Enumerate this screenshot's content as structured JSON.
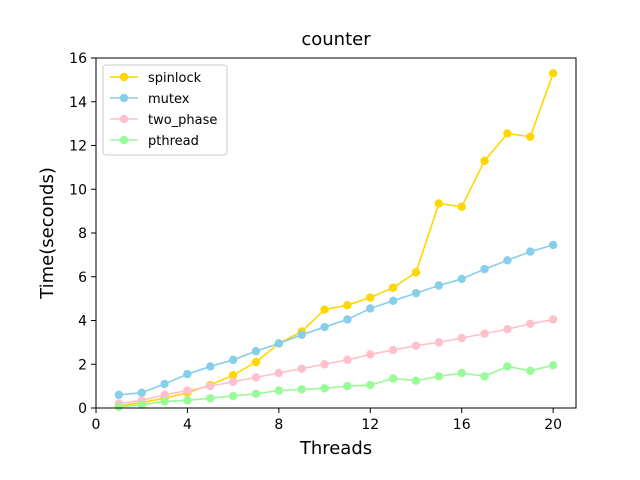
{
  "chart_data": {
    "type": "line",
    "title": "counter",
    "xlabel": "Threads",
    "ylabel": "Time(seconds)",
    "xlim": [
      0,
      21
    ],
    "ylim": [
      0,
      16
    ],
    "xticks": [
      0,
      4,
      8,
      12,
      16,
      20
    ],
    "yticks": [
      0,
      2,
      4,
      6,
      8,
      10,
      12,
      14,
      16
    ],
    "grid": false,
    "legend_position": "top-left",
    "x": [
      1,
      2,
      3,
      4,
      5,
      6,
      7,
      8,
      9,
      10,
      11,
      12,
      13,
      14,
      15,
      16,
      17,
      18,
      19,
      20
    ],
    "series": [
      {
        "name": "spinlock",
        "color": "#ffd700",
        "values": [
          0.1,
          0.25,
          0.45,
          0.7,
          1.05,
          1.5,
          2.1,
          2.95,
          3.5,
          4.5,
          4.7,
          5.05,
          5.5,
          6.2,
          9.35,
          9.2,
          11.3,
          12.55,
          12.4,
          15.3
        ]
      },
      {
        "name": "mutex",
        "color": "#87ceeb",
        "values": [
          0.6,
          0.7,
          1.1,
          1.55,
          1.9,
          2.2,
          2.6,
          2.95,
          3.35,
          3.7,
          4.05,
          4.55,
          4.9,
          5.25,
          5.6,
          5.9,
          6.35,
          6.75,
          7.15,
          7.45
        ]
      },
      {
        "name": "two_phase",
        "color": "#ffc0cb",
        "values": [
          0.2,
          0.35,
          0.6,
          0.8,
          1.0,
          1.2,
          1.4,
          1.6,
          1.8,
          2.0,
          2.2,
          2.45,
          2.65,
          2.85,
          3.0,
          3.2,
          3.4,
          3.6,
          3.85,
          4.05
        ]
      },
      {
        "name": "pthread",
        "color": "#98fb98",
        "values": [
          0.05,
          0.15,
          0.3,
          0.35,
          0.45,
          0.55,
          0.65,
          0.8,
          0.85,
          0.9,
          1.0,
          1.05,
          1.35,
          1.25,
          1.45,
          1.6,
          1.45,
          1.9,
          1.7,
          1.95
        ]
      }
    ]
  }
}
